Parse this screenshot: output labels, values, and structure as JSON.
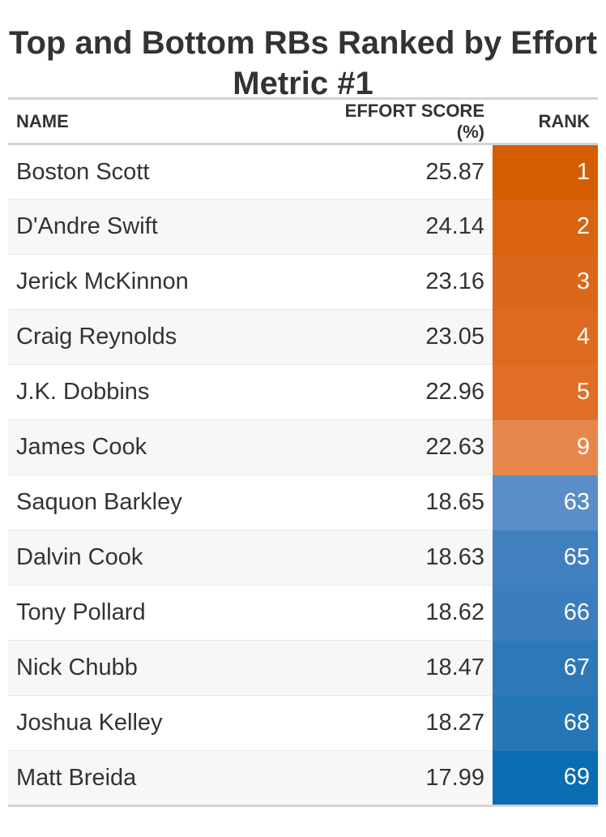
{
  "title": "Top and Bottom RBs Ranked by Effort Metric #1",
  "table": {
    "headers": {
      "name": "NAME",
      "score": "EFFORT SCORE (%)",
      "rank": "RANK"
    }
  },
  "chart_data": {
    "type": "table",
    "title": "Top and Bottom RBs Ranked by Effort Metric #1",
    "columns": [
      "NAME",
      "EFFORT SCORE (%)",
      "RANK"
    ],
    "rows": [
      {
        "name": "Boston Scott",
        "score": "25.87",
        "rank": "1",
        "color": "#d55e00"
      },
      {
        "name": "D'Andre Swift",
        "score": "24.14",
        "rank": "2",
        "color": "#d9630f"
      },
      {
        "name": "Jerick McKinnon",
        "score": "23.16",
        "rank": "3",
        "color": "#dc671a"
      },
      {
        "name": "Craig Reynolds",
        "score": "23.05",
        "rank": "4",
        "color": "#de6a20"
      },
      {
        "name": "J.K. Dobbins",
        "score": "22.96",
        "rank": "5",
        "color": "#e06e27"
      },
      {
        "name": "James Cook",
        "score": "22.63",
        "rank": "9",
        "color": "#e8874b"
      },
      {
        "name": "Saquon Barkley",
        "score": "18.65",
        "rank": "63",
        "color": "#5b8ec6"
      },
      {
        "name": "Dalvin Cook",
        "score": "18.63",
        "rank": "65",
        "color": "#427fbf"
      },
      {
        "name": "Tony Pollard",
        "score": "18.62",
        "rank": "66",
        "color": "#3b7dbd"
      },
      {
        "name": "Nick Chubb",
        "score": "18.47",
        "rank": "67",
        "color": "#2f78b8"
      },
      {
        "name": "Joshua Kelley",
        "score": "18.27",
        "rank": "68",
        "color": "#2476b6"
      },
      {
        "name": "Matt Breida",
        "score": "17.99",
        "rank": "69",
        "color": "#0a6db2"
      }
    ]
  }
}
